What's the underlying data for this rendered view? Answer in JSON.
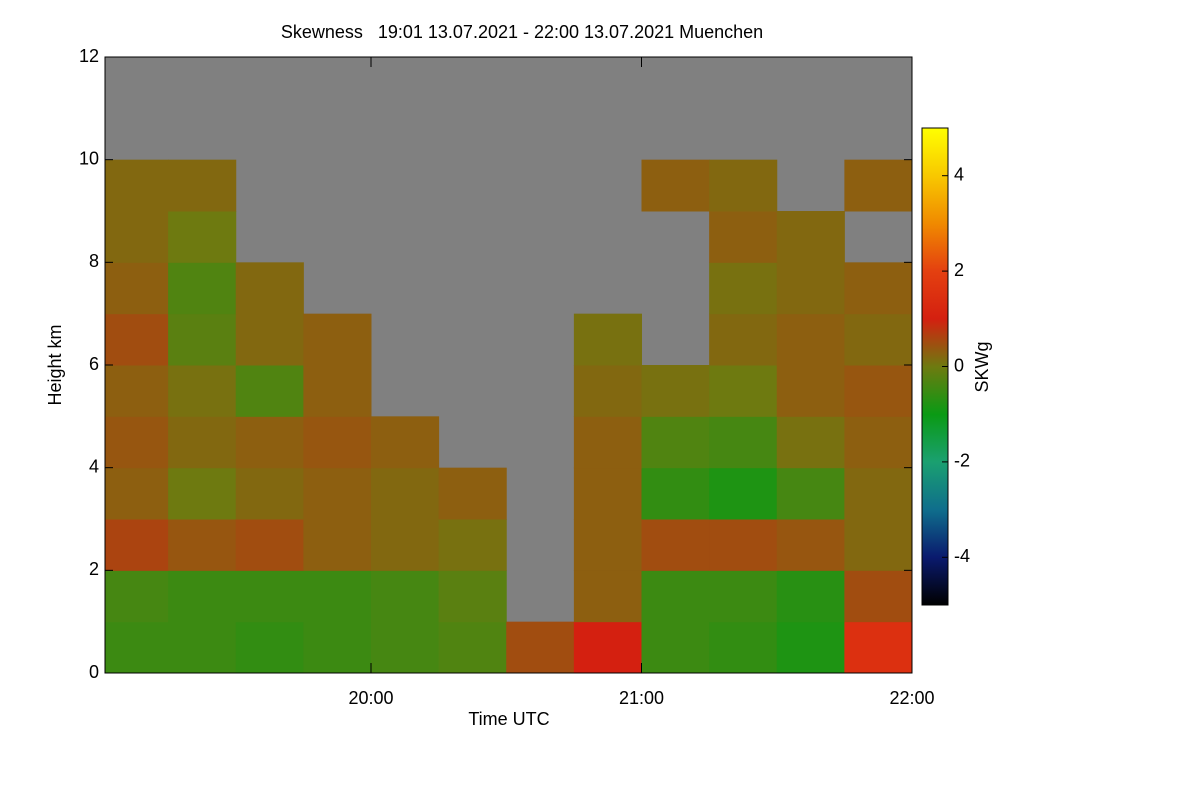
{
  "chart_data": {
    "type": "heatmap",
    "title": "Skewness   19:01 13.07.2021 - 22:00 13.07.2021 Muenchen",
    "xlabel": "Time UTC",
    "ylabel": "Height km",
    "colorbar_label": "SKWg",
    "xlim": [
      19.0167,
      22.0
    ],
    "xticks": [
      {
        "value": 20,
        "label": "20:00"
      },
      {
        "value": 21,
        "label": "21:00"
      },
      {
        "value": 22,
        "label": "22:00"
      }
    ],
    "ylim": [
      0,
      12
    ],
    "yticks": [
      0,
      2,
      4,
      6,
      8,
      10,
      12
    ],
    "zlim": [
      -5,
      5
    ],
    "zticks": [
      -4,
      -2,
      0,
      2,
      4
    ],
    "colors": [
      "#000000",
      "#0a1a6e",
      "#0f6e8c",
      "#1aa070",
      "#0a9a14",
      "#6e7a10",
      "#d42010",
      "#e44010",
      "#f08a00",
      "#f8c800",
      "#ffff00"
    ],
    "nan_color": "#808080",
    "xbins": [
      19.0167,
      19.25,
      19.5,
      19.75,
      20.0,
      20.25,
      20.5,
      20.75,
      21.0,
      21.25,
      21.5,
      21.75,
      22.0
    ],
    "ybins": [
      0,
      1,
      2,
      3,
      4,
      5,
      6,
      7,
      8,
      9,
      10,
      11,
      12
    ],
    "z": [
      [
        -0.5,
        -0.5,
        -0.6,
        -0.5,
        -0.4,
        -0.3,
        0.5,
        1,
        -0.5,
        -0.6,
        -0.8,
        1.5
      ],
      [
        -0.4,
        -0.5,
        -0.5,
        -0.5,
        -0.4,
        -0.2,
        null,
        0.3,
        -0.5,
        -0.5,
        -0.7,
        0.5
      ],
      [
        0.6,
        0.4,
        0.5,
        0.3,
        0.2,
        0.1,
        null,
        0.3,
        0.5,
        0.5,
        0.4,
        0.2
      ],
      [
        0.3,
        0,
        0.2,
        0.3,
        0.2,
        0.3,
        null,
        0.3,
        -0.6,
        -0.8,
        -0.4,
        0.2
      ],
      [
        0.4,
        0.2,
        0.3,
        0.4,
        0.3,
        null,
        null,
        0.3,
        -0.3,
        -0.4,
        0.1,
        0.3
      ],
      [
        0.3,
        0.1,
        -0.3,
        0.3,
        null,
        null,
        null,
        0.2,
        0.1,
        0,
        0.3,
        0.4
      ],
      [
        0.5,
        -0.2,
        0.2,
        0.3,
        null,
        null,
        null,
        0.1,
        null,
        0.2,
        0.3,
        0.2
      ],
      [
        0.3,
        -0.3,
        0.2,
        null,
        null,
        null,
        null,
        null,
        null,
        0.1,
        0.2,
        0.3
      ],
      [
        0.2,
        0,
        null,
        null,
        null,
        null,
        null,
        null,
        null,
        0.3,
        0.2,
        null
      ],
      [
        0.2,
        0.2,
        null,
        null,
        null,
        null,
        null,
        null,
        0.3,
        0.2,
        null,
        0.3
      ],
      [
        null,
        null,
        null,
        null,
        null,
        null,
        null,
        null,
        null,
        null,
        null,
        null
      ],
      [
        null,
        null,
        null,
        null,
        null,
        null,
        null,
        null,
        null,
        null,
        null,
        null
      ]
    ]
  }
}
